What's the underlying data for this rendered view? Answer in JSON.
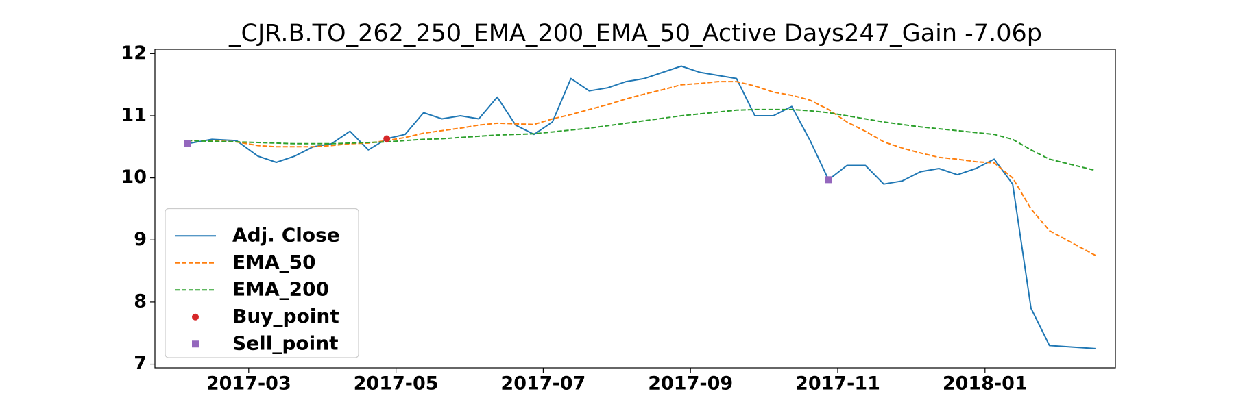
{
  "chart_data": {
    "type": "line",
    "title": "_CJR.B.TO_262_250_EMA_200_EMA_50_Active Days247_Gain  -7.06p",
    "x": [
      "2017-02",
      "2017-02",
      "2017-02",
      "2017-03",
      "2017-03",
      "2017-03",
      "2017-03",
      "2017-04",
      "2017-04",
      "2017-04",
      "2017-04",
      "2017-05",
      "2017-05",
      "2017-05",
      "2017-05",
      "2017-06",
      "2017-06",
      "2017-06",
      "2017-06",
      "2017-07",
      "2017-07",
      "2017-07",
      "2017-07",
      "2017-08",
      "2017-08",
      "2017-08",
      "2017-08",
      "2017-09",
      "2017-09",
      "2017-09",
      "2017-09",
      "2017-10",
      "2017-10",
      "2017-10",
      "2017-10",
      "2017-11",
      "2017-11",
      "2017-11",
      "2017-11",
      "2017-12",
      "2017-12",
      "2017-12",
      "2017-12",
      "2018-01",
      "2018-01",
      "2018-01",
      "2018-01",
      "2018-02"
    ],
    "series": [
      {
        "name": "Adj. Close",
        "color": "#1f77b4",
        "linestyle": "solid",
        "values": [
          10.55,
          10.62,
          10.6,
          10.35,
          10.25,
          10.35,
          10.5,
          10.55,
          10.75,
          10.45,
          10.63,
          10.7,
          11.05,
          10.95,
          11.0,
          10.95,
          11.3,
          10.85,
          10.7,
          10.9,
          11.6,
          11.4,
          11.45,
          11.55,
          11.6,
          11.7,
          11.8,
          11.7,
          11.65,
          11.6,
          11.0,
          11.0,
          11.15,
          10.6,
          9.97,
          10.2,
          10.2,
          9.9,
          9.95,
          10.1,
          10.15,
          10.05,
          10.15,
          10.3,
          9.9,
          7.9,
          7.3,
          7.25
        ]
      },
      {
        "name": "EMA_50",
        "color": "#ff7f0e",
        "linestyle": "dashed",
        "values": [
          10.6,
          10.6,
          10.58,
          10.52,
          10.5,
          10.5,
          10.5,
          10.52,
          10.55,
          10.56,
          10.6,
          10.65,
          10.72,
          10.76,
          10.8,
          10.85,
          10.88,
          10.87,
          10.86,
          10.95,
          11.02,
          11.1,
          11.18,
          11.27,
          11.35,
          11.42,
          11.5,
          11.52,
          11.55,
          11.55,
          11.48,
          11.38,
          11.33,
          11.25,
          11.1,
          10.9,
          10.75,
          10.58,
          10.48,
          10.4,
          10.33,
          10.3,
          10.26,
          10.24,
          10.0,
          9.5,
          9.15,
          8.75
        ]
      },
      {
        "name": "EMA_200",
        "color": "#2ca02c",
        "linestyle": "dashed",
        "values": [
          10.6,
          10.59,
          10.58,
          10.57,
          10.56,
          10.55,
          10.55,
          10.55,
          10.56,
          10.57,
          10.58,
          10.6,
          10.62,
          10.63,
          10.65,
          10.67,
          10.69,
          10.7,
          10.71,
          10.74,
          10.77,
          10.8,
          10.84,
          10.88,
          10.92,
          10.96,
          11.0,
          11.03,
          11.06,
          11.09,
          11.1,
          11.1,
          11.1,
          11.08,
          11.05,
          11.0,
          10.95,
          10.9,
          10.86,
          10.82,
          10.79,
          10.76,
          10.73,
          10.7,
          10.62,
          10.45,
          10.3,
          10.12
        ]
      },
      {
        "name": "Buy_point",
        "color": "#d62728",
        "marker": "circle",
        "values": [
          null,
          null,
          null,
          null,
          null,
          null,
          null,
          null,
          null,
          null,
          10.63,
          null,
          null,
          null,
          null,
          null,
          null,
          null,
          null,
          null,
          null,
          null,
          null,
          null,
          null,
          null,
          null,
          null,
          null,
          null,
          null,
          null,
          null,
          null,
          null,
          null,
          null,
          null,
          null,
          null,
          null,
          null,
          null,
          null,
          null,
          null,
          null,
          null
        ]
      },
      {
        "name": "Sell_point",
        "color": "#9467bd",
        "marker": "square",
        "values": [
          10.55,
          null,
          null,
          null,
          null,
          null,
          null,
          null,
          null,
          null,
          null,
          null,
          null,
          null,
          null,
          null,
          null,
          null,
          null,
          null,
          null,
          null,
          null,
          null,
          null,
          null,
          null,
          null,
          null,
          null,
          null,
          null,
          null,
          null,
          9.97,
          null,
          null,
          null,
          null,
          null,
          null,
          null,
          null,
          null,
          null,
          null,
          null,
          null
        ]
      }
    ],
    "xticks": [
      "2017-03",
      "2017-05",
      "2017-07",
      "2017-09",
      "2017-11",
      "2018-01"
    ],
    "ylim": [
      6.94,
      12.07
    ],
    "yticks": [
      7,
      8,
      9,
      10,
      11,
      12
    ],
    "legend": "lower left"
  }
}
